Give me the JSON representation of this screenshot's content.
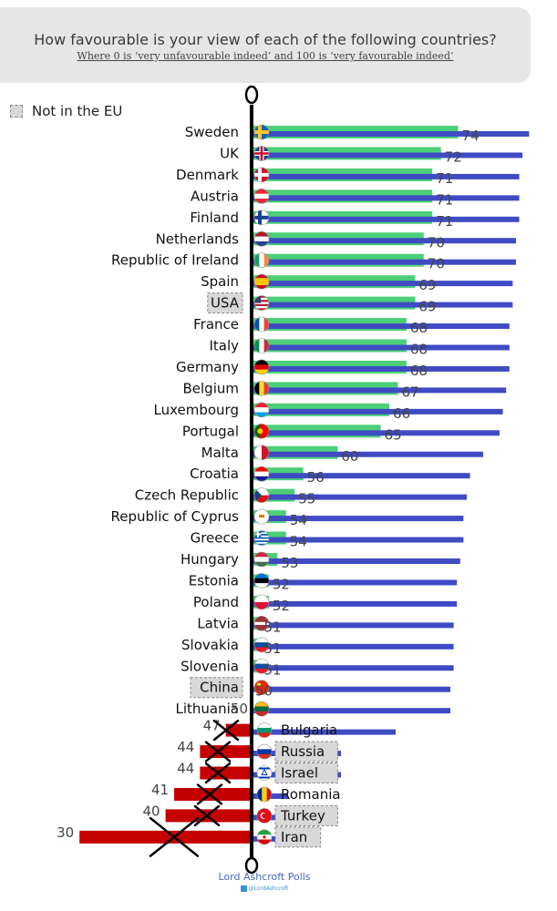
{
  "header": {
    "title": "How favourable is your view of each of the following countries?",
    "subtitle": "Where 0 is ‘very unfavourable indeed’ and 100 is ‘very favourable indeed’"
  },
  "legend": {
    "label": "Not in the EU"
  },
  "axis_markers": {
    "top": "0",
    "bottom": "0"
  },
  "footer": {
    "source": "Lord Ashcroft Polls",
    "handle": "@LordAshcroft"
  },
  "colors": {
    "green_bar": "#4ccf78",
    "blue_bar": "#3f4bc3",
    "red_bar": "#c40000",
    "axis": "#000000",
    "not_in_eu_box": "#d8d8d8"
  },
  "chart_data": {
    "type": "bar",
    "title": "How favourable is your view of each of the following countries?",
    "subtitle": "Where 0 is ‘very unfavourable indeed’ and 100 is ‘very favourable indeed’",
    "orientation": "horizontal",
    "xlim": [
      0,
      100
    ],
    "baseline": 50,
    "legend": {
      "entries": [
        "Not in the EU"
      ],
      "position": "top-left"
    },
    "rows": [
      {
        "country": "Sweden",
        "value": 74,
        "not_in_eu": false,
        "flag": "sweden-flag-icon"
      },
      {
        "country": "UK",
        "value": 72,
        "not_in_eu": false,
        "flag": "uk-flag-icon"
      },
      {
        "country": "Denmark",
        "value": 71,
        "not_in_eu": false,
        "flag": "denmark-flag-icon"
      },
      {
        "country": "Austria",
        "value": 71,
        "not_in_eu": false,
        "flag": "austria-flag-icon"
      },
      {
        "country": "Finland",
        "value": 71,
        "not_in_eu": false,
        "flag": "finland-flag-icon"
      },
      {
        "country": "Netherlands",
        "value": 70,
        "not_in_eu": false,
        "flag": "netherlands-flag-icon"
      },
      {
        "country": "Republic of Ireland",
        "value": 70,
        "not_in_eu": false,
        "flag": "ireland-flag-icon"
      },
      {
        "country": "Spain",
        "value": 69,
        "not_in_eu": false,
        "flag": "spain-flag-icon"
      },
      {
        "country": "USA",
        "value": 69,
        "not_in_eu": true,
        "flag": "usa-flag-icon"
      },
      {
        "country": "France",
        "value": 68,
        "not_in_eu": false,
        "flag": "france-flag-icon"
      },
      {
        "country": "Italy",
        "value": 68,
        "not_in_eu": false,
        "flag": "italy-flag-icon"
      },
      {
        "country": "Germany",
        "value": 68,
        "not_in_eu": false,
        "flag": "germany-flag-icon"
      },
      {
        "country": "Belgium",
        "value": 67,
        "not_in_eu": false,
        "flag": "belgium-flag-icon"
      },
      {
        "country": "Luxembourg",
        "value": 66,
        "not_in_eu": false,
        "flag": "luxembourg-flag-icon"
      },
      {
        "country": "Portugal",
        "value": 65,
        "not_in_eu": false,
        "flag": "portugal-flag-icon"
      },
      {
        "country": "Malta",
        "value": 60,
        "not_in_eu": false,
        "flag": "malta-flag-icon"
      },
      {
        "country": "Croatia",
        "value": 56,
        "not_in_eu": false,
        "flag": "croatia-flag-icon"
      },
      {
        "country": "Czech Republic",
        "value": 55,
        "not_in_eu": false,
        "flag": "czech-flag-icon"
      },
      {
        "country": "Republic of Cyprus",
        "value": 54,
        "not_in_eu": false,
        "flag": "cyprus-flag-icon"
      },
      {
        "country": "Greece",
        "value": 54,
        "not_in_eu": false,
        "flag": "greece-flag-icon"
      },
      {
        "country": "Hungary",
        "value": 53,
        "not_in_eu": false,
        "flag": "hungary-flag-icon"
      },
      {
        "country": "Estonia",
        "value": 52,
        "not_in_eu": false,
        "flag": "estonia-flag-icon"
      },
      {
        "country": "Poland",
        "value": 52,
        "not_in_eu": false,
        "flag": "poland-flag-icon"
      },
      {
        "country": "Latvia",
        "value": 51,
        "not_in_eu": false,
        "flag": "latvia-flag-icon"
      },
      {
        "country": "Slovakia",
        "value": 51,
        "not_in_eu": false,
        "flag": "slovakia-flag-icon"
      },
      {
        "country": "Slovenia",
        "value": 51,
        "not_in_eu": false,
        "flag": "slovenia-flag-icon"
      },
      {
        "country": "China",
        "value": 50,
        "not_in_eu": true,
        "flag": "china-flag-icon"
      },
      {
        "country": "Lithuania",
        "value": 50,
        "not_in_eu": false,
        "flag": "lithuania-flag-icon"
      },
      {
        "country": "Bulgaria",
        "value": 47,
        "not_in_eu": false,
        "flag": "bulgaria-flag-icon"
      },
      {
        "country": "Russia",
        "value": 44,
        "not_in_eu": true,
        "flag": "russia-flag-icon"
      },
      {
        "country": "Israel",
        "value": 44,
        "not_in_eu": true,
        "flag": "israel-flag-icon"
      },
      {
        "country": "Romania",
        "value": 41,
        "not_in_eu": false,
        "flag": "romania-flag-icon"
      },
      {
        "country": "Turkey",
        "value": 40,
        "not_in_eu": true,
        "flag": "turkey-flag-icon"
      },
      {
        "country": "Iran",
        "value": 30,
        "not_in_eu": true,
        "flag": "iran-flag-icon"
      }
    ]
  }
}
